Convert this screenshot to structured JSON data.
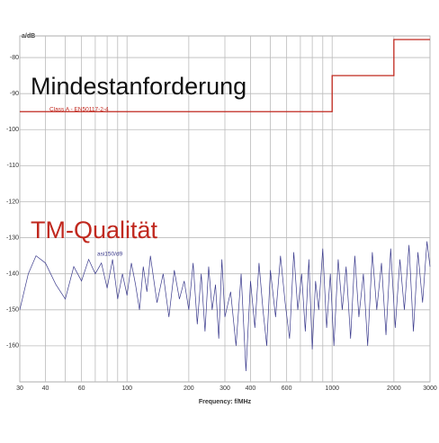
{
  "chart_data": {
    "type": "line",
    "y_label": "a/dB",
    "x_label": "Frequency: f/MHz",
    "annotations": [
      "Mindestanforderung",
      "Class A - EN50117-2-4",
      "TM-Qualität",
      "asi150/d9"
    ],
    "xscale": "log",
    "xlim": [
      30,
      3000
    ],
    "ylim": [
      -170,
      -74
    ],
    "xticks": [
      30,
      40,
      60,
      100,
      200,
      300,
      400,
      600,
      1000,
      2000,
      3000
    ],
    "xminor": [
      50,
      70,
      80,
      90,
      500,
      700,
      800,
      900
    ],
    "yticks": [
      -80,
      -90,
      -100,
      -110,
      -120,
      -130,
      -140,
      -150,
      -160
    ],
    "grid": true,
    "series": [
      {
        "color": "#c0281e",
        "x": [
          30,
          1000,
          1000,
          2000,
          2000,
          3000
        ],
        "values": [
          -95,
          -95,
          -85,
          -85,
          -75,
          -75
        ]
      },
      {
        "color": "#3a3a8c",
        "x": [
          30,
          33,
          36,
          40,
          45,
          50,
          55,
          60,
          65,
          70,
          75,
          80,
          85,
          90,
          95,
          100,
          105,
          110,
          115,
          120,
          125,
          130,
          140,
          150,
          160,
          170,
          180,
          190,
          200,
          210,
          220,
          230,
          240,
          250,
          260,
          270,
          280,
          290,
          300,
          320,
          340,
          360,
          380,
          400,
          420,
          440,
          460,
          480,
          500,
          530,
          560,
          590,
          620,
          650,
          680,
          710,
          740,
          770,
          800,
          830,
          860,
          900,
          940,
          980,
          1020,
          1070,
          1120,
          1170,
          1230,
          1290,
          1350,
          1420,
          1490,
          1570,
          1650,
          1740,
          1830,
          1930,
          2030,
          2140,
          2250,
          2370,
          2490,
          2620,
          2760,
          2900,
          3000
        ],
        "values": [
          -150,
          -140,
          -135,
          -137,
          -143,
          -147,
          -138,
          -142,
          -136,
          -140,
          -137,
          -144,
          -136,
          -147,
          -140,
          -146,
          -137,
          -143,
          -150,
          -138,
          -145,
          -135,
          -148,
          -140,
          -152,
          -139,
          -147,
          -142,
          -150,
          -137,
          -154,
          -140,
          -156,
          -138,
          -150,
          -143,
          -158,
          -136,
          -152,
          -145,
          -160,
          -140,
          -167,
          -142,
          -155,
          -137,
          -150,
          -160,
          -139,
          -152,
          -135,
          -148,
          -158,
          -134,
          -150,
          -140,
          -156,
          -136,
          -161,
          -142,
          -150,
          -133,
          -155,
          -140,
          -160,
          -136,
          -150,
          -138,
          -158,
          -135,
          -152,
          -140,
          -160,
          -134,
          -150,
          -137,
          -157,
          -133,
          -155,
          -136,
          -150,
          -132,
          -156,
          -134,
          -148,
          -131,
          -138
        ]
      }
    ]
  }
}
